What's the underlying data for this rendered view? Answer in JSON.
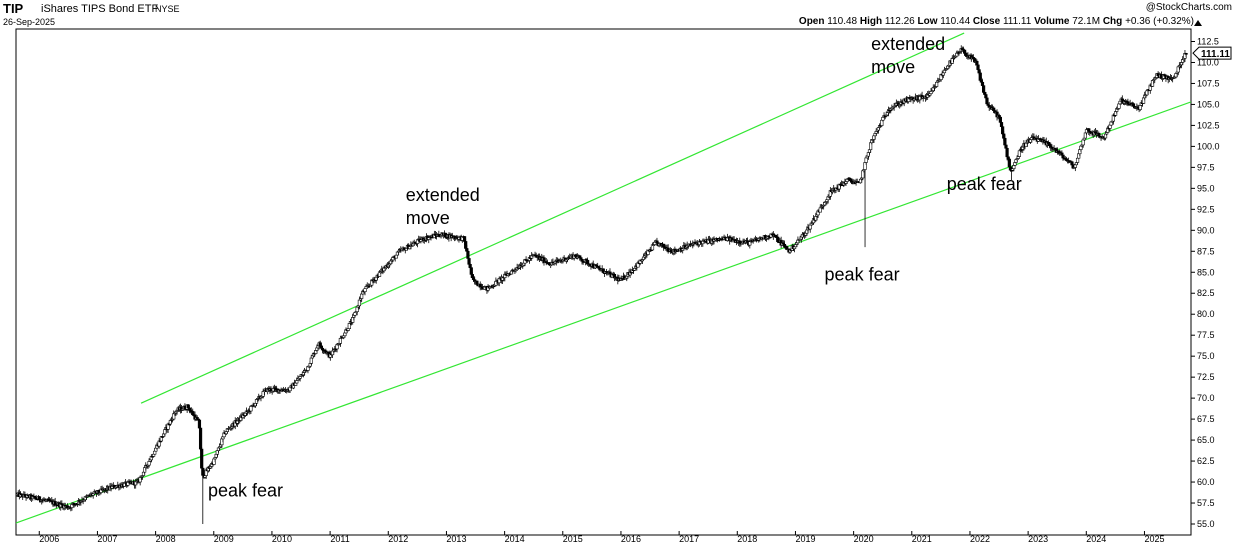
{
  "header": {
    "symbol": "TIP",
    "name": "iShares TIPS Bond ETF",
    "exchange": "NYSE",
    "date": "26-Sep-2025",
    "brand": "@StockCharts.com",
    "open_label": "Open",
    "open": "110.48",
    "high_label": "High",
    "high": "112.26",
    "low_label": "Low",
    "low": "110.44",
    "close_label": "Close",
    "close": "111.11",
    "volume_label": "Volume",
    "volume": "72.1M",
    "chg_label": "Chg",
    "chg": "+0.36 (+0.32%)"
  },
  "price_badge": "111.11",
  "chart_data": {
    "type": "candlestick",
    "title": "TIP iShares TIPS Bond ETF NYSE",
    "xlabel": "",
    "ylabel": "",
    "xlim": [
      2005.6,
      2025.8
    ],
    "ylim": [
      55.0,
      113.0
    ],
    "y_ticks": [
      55.0,
      57.5,
      60.0,
      62.5,
      65.0,
      67.5,
      70.0,
      72.5,
      75.0,
      77.5,
      80.0,
      82.5,
      85.0,
      87.5,
      90.0,
      92.5,
      95.0,
      97.5,
      100.0,
      102.5,
      105.0,
      107.5,
      110.0,
      112.5
    ],
    "x_ticks": [
      "2006",
      "2007",
      "2008",
      "2009",
      "2010",
      "2011",
      "2012",
      "2013",
      "2014",
      "2015",
      "2016",
      "2017",
      "2018",
      "2019",
      "2020",
      "2021",
      "2022",
      "2023",
      "2024",
      "2025"
    ],
    "grid": false,
    "trendlines": [
      {
        "name": "upper channel",
        "x": [
          2007.75,
          2021.9
        ],
        "y": [
          69.4,
          113.5
        ]
      },
      {
        "name": "lower channel",
        "x": [
          2005.55,
          2025.8
        ],
        "y": [
          55.0,
          105.3
        ]
      }
    ],
    "annotations": [
      {
        "text": "extended move",
        "x": 2012.3,
        "y": 93.5
      },
      {
        "text": "peak fear",
        "x": 2008.9,
        "y": 58.3
      },
      {
        "text": "peak fear",
        "x": 2019.5,
        "y": 84.0
      },
      {
        "text": "extended move",
        "x": 2020.3,
        "y": 111.5
      },
      {
        "text": "peak fear",
        "x": 2021.6,
        "y": 94.8
      }
    ],
    "price_points": [
      [
        2005.6,
        58.5
      ],
      [
        2006.0,
        58.0
      ],
      [
        2006.5,
        57.0
      ],
      [
        2006.9,
        58.5
      ],
      [
        2007.3,
        59.5
      ],
      [
        2007.7,
        60.0
      ],
      [
        2008.0,
        64.0
      ],
      [
        2008.35,
        68.5
      ],
      [
        2008.55,
        69.0
      ],
      [
        2008.75,
        67.0
      ],
      [
        2008.8,
        60.5
      ],
      [
        2009.0,
        62.5
      ],
      [
        2009.2,
        66.0
      ],
      [
        2009.6,
        68.5
      ],
      [
        2009.9,
        71.0
      ],
      [
        2010.3,
        71.0
      ],
      [
        2010.6,
        73.5
      ],
      [
        2010.8,
        76.5
      ],
      [
        2011.0,
        75.0
      ],
      [
        2011.4,
        79.5
      ],
      [
        2011.55,
        82.5
      ],
      [
        2011.8,
        84.5
      ],
      [
        2012.2,
        87.5
      ],
      [
        2012.6,
        89.0
      ],
      [
        2012.9,
        89.5
      ],
      [
        2013.3,
        89.0
      ],
      [
        2013.45,
        84.0
      ],
      [
        2013.7,
        83.0
      ],
      [
        2014.0,
        84.5
      ],
      [
        2014.5,
        87.0
      ],
      [
        2014.8,
        86.0
      ],
      [
        2015.2,
        87.0
      ],
      [
        2015.6,
        85.5
      ],
      [
        2016.0,
        84.0
      ],
      [
        2016.3,
        86.0
      ],
      [
        2016.6,
        88.5
      ],
      [
        2016.9,
        87.5
      ],
      [
        2017.3,
        88.5
      ],
      [
        2017.8,
        89.0
      ],
      [
        2018.2,
        88.5
      ],
      [
        2018.6,
        89.5
      ],
      [
        2018.9,
        87.5
      ],
      [
        2019.2,
        90.0
      ],
      [
        2019.6,
        94.5
      ],
      [
        2019.9,
        96.0
      ],
      [
        2020.1,
        95.5
      ],
      [
        2020.3,
        100.5
      ],
      [
        2020.6,
        104.5
      ],
      [
        2020.9,
        105.5
      ],
      [
        2021.3,
        106.0
      ],
      [
        2021.6,
        109.5
      ],
      [
        2021.85,
        111.5
      ],
      [
        2022.1,
        110.0
      ],
      [
        2022.3,
        105.0
      ],
      [
        2022.5,
        103.5
      ],
      [
        2022.7,
        97.0
      ],
      [
        2022.9,
        100.0
      ],
      [
        2023.1,
        101.0
      ],
      [
        2023.4,
        100.0
      ],
      [
        2023.8,
        97.5
      ],
      [
        2024.0,
        102.0
      ],
      [
        2024.3,
        101.0
      ],
      [
        2024.6,
        105.5
      ],
      [
        2024.9,
        104.5
      ],
      [
        2025.2,
        108.5
      ],
      [
        2025.5,
        108.0
      ],
      [
        2025.7,
        111.11
      ]
    ]
  }
}
